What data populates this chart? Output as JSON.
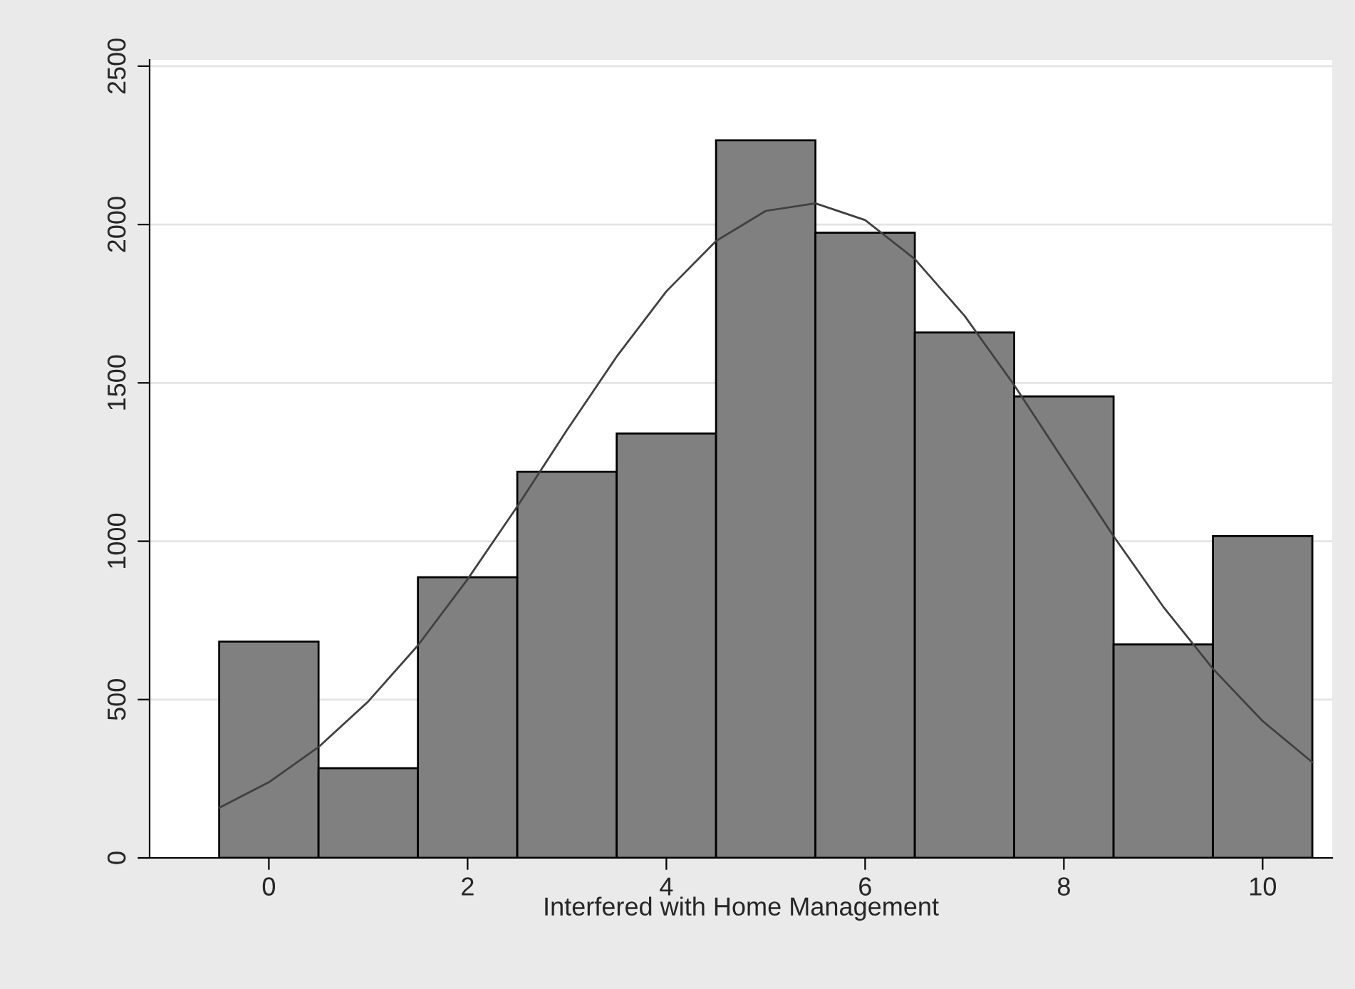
{
  "chart_data": {
    "type": "histogram",
    "xlabel": "Interfered with Home Management",
    "bins": [
      -0.5,
      0.5,
      1.5,
      2.5,
      3.5,
      4.5,
      5.5,
      6.5,
      7.5,
      8.5,
      9.5,
      10.5
    ],
    "values": [
      683,
      283,
      886,
      1219,
      1340,
      2266,
      1974,
      1659,
      1457,
      674,
      1016
    ],
    "color": "#808080",
    "series": [
      {
        "type": "line",
        "color": "#404040",
        "x": [
          -0.5,
          0,
          0.5,
          1,
          1.5,
          2,
          2.5,
          3,
          3.5,
          4,
          4.5,
          5,
          5.5,
          6,
          6.5,
          7,
          7.5,
          8,
          8.5,
          9,
          9.5,
          10,
          10.5
        ],
        "values": [
          158,
          239,
          350,
          494,
          671,
          880,
          1110,
          1351,
          1583,
          1789,
          1948,
          2043,
          2067,
          2014,
          1891,
          1712,
          1493,
          1254,
          1016,
          793,
          597,
          432,
          302
        ]
      }
    ],
    "xlim": [
      -1.2,
      10.7
    ],
    "ylim": [
      0,
      2520
    ],
    "xticks": [
      0,
      2,
      4,
      6,
      8,
      10
    ],
    "yticks": [
      0,
      500,
      1000,
      1500,
      2000,
      2500
    ],
    "grid": "y",
    "legend": false
  }
}
